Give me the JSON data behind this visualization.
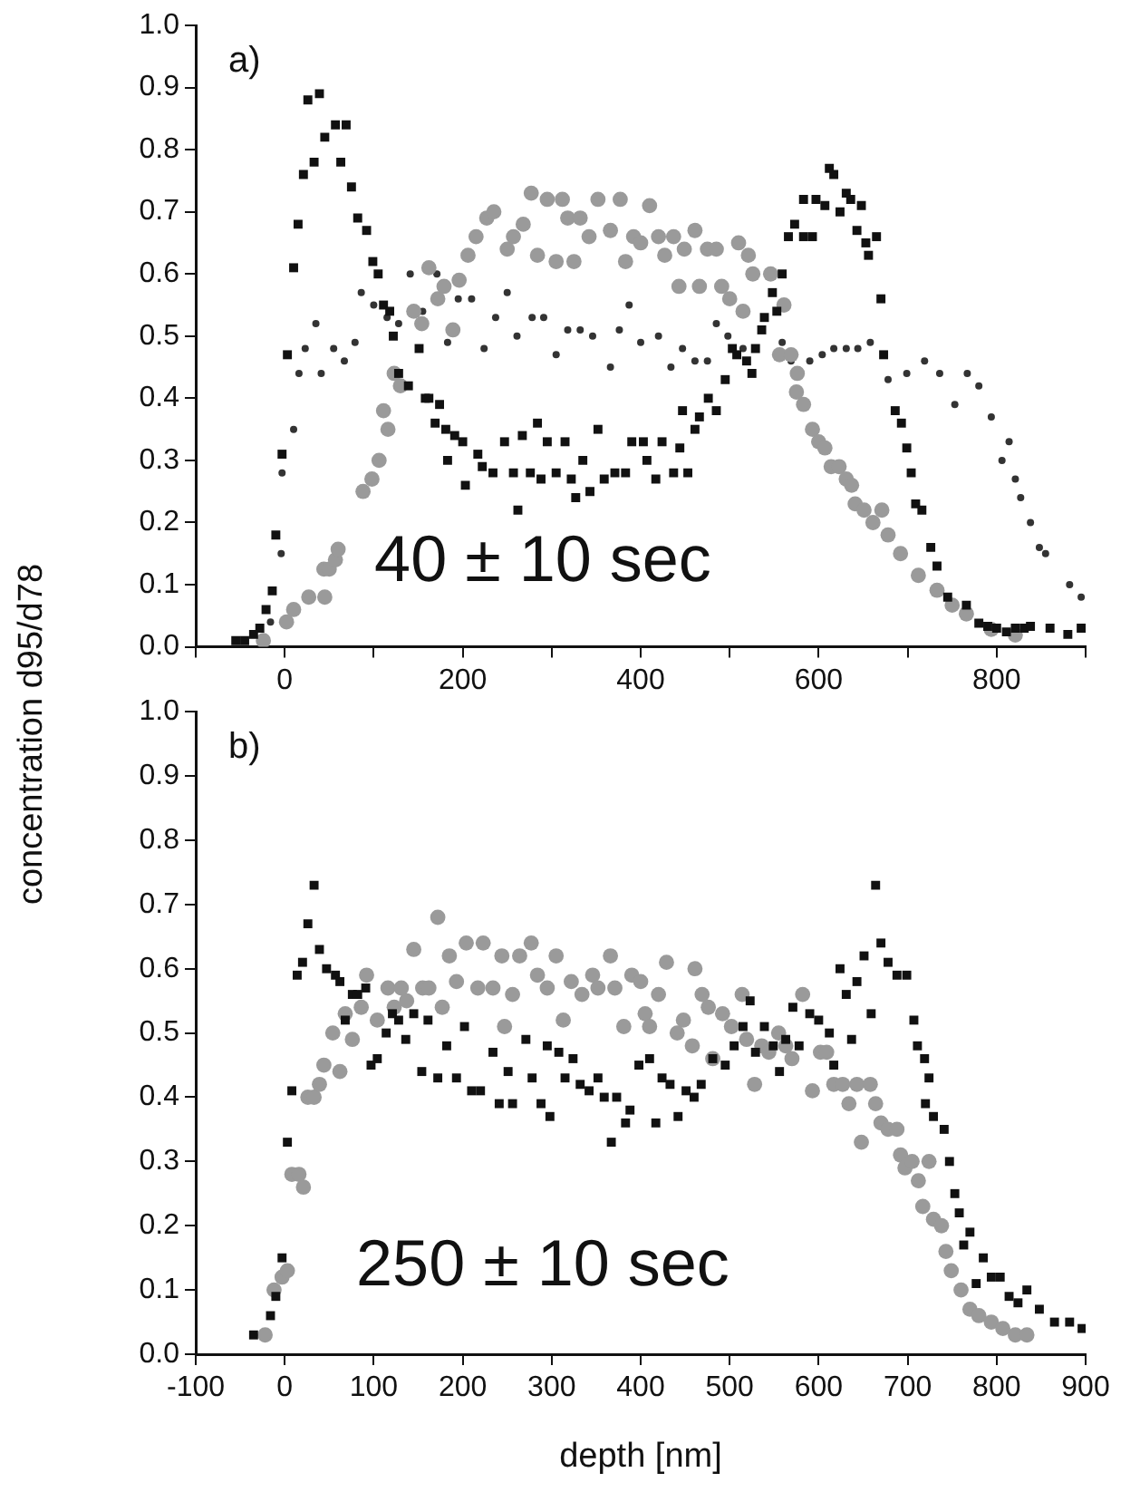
{
  "chart_data": [
    {
      "type": "scatter",
      "ylabel": "concentration d95/d78",
      "annotations": [
        "a)",
        "40 ± 10 sec"
      ],
      "xlim": [
        -100,
        900
      ],
      "ylim": [
        0,
        1
      ],
      "xticks": [
        {
          "value": -100,
          "label": null
        },
        0,
        {
          "value": 100,
          "label": null
        },
        200,
        {
          "value": 300,
          "label": null
        },
        400,
        {
          "value": 500,
          "label": null
        },
        600,
        {
          "value": 700,
          "label": null
        },
        800,
        {
          "value": 900,
          "label": null
        }
      ],
      "yticks": [
        {
          "value": 0,
          "label": "0.0"
        },
        {
          "value": 0.1,
          "label": "0.1"
        },
        {
          "value": 0.2,
          "label": "0.2"
        },
        {
          "value": 0.3,
          "label": "0.3"
        },
        {
          "value": 0.4,
          "label": "0.4"
        },
        {
          "value": 0.5,
          "label": "0.5"
        },
        {
          "value": 0.6,
          "label": "0.6"
        },
        {
          "value": 0.7,
          "label": "0.7"
        },
        {
          "value": 0.8,
          "label": "0.8"
        },
        {
          "value": 0.9,
          "label": "0.9"
        },
        {
          "value": 1,
          "label": "1.0"
        }
      ],
      "grid": false,
      "legend": false,
      "series": [
        {
          "color": "#111111",
          "marker": "square",
          "x": [
            -55,
            -45,
            -35,
            -28,
            -21,
            -14,
            -10,
            -3,
            3,
            10,
            15,
            21,
            26,
            39,
            33,
            45,
            57,
            69,
            63,
            75,
            82,
            92,
            99,
            105,
            111,
            118,
            122,
            128,
            139,
            151,
            158,
            162,
            174,
            169,
            181,
            191,
            200,
            203,
            183,
            217,
            222,
            234,
            247,
            257,
            262,
            267,
            276,
            284,
            288,
            295,
            305,
            315,
            322,
            327,
            335,
            343,
            352,
            359,
            371,
            383,
            390,
            403,
            407,
            417,
            424,
            437,
            444,
            453,
            447,
            461,
            466,
            476,
            485,
            495,
            503,
            508,
            519,
            525,
            529,
            536,
            539,
            548,
            553,
            559,
            566,
            573,
            583,
            593,
            583,
            597,
            607,
            612,
            617,
            624,
            631,
            636,
            648,
            643,
            653,
            665,
            656,
            670,
            673,
            686,
            693,
            699,
            704,
            709,
            716,
            726,
            733,
            745,
            766,
            780,
            790,
            800,
            811,
            821,
            831,
            838,
            860,
            880,
            895
          ],
          "values": [
            0.01,
            0.01,
            0.02,
            0.03,
            0.06,
            0.09,
            0.18,
            0.31,
            0.47,
            0.61,
            0.68,
            0.76,
            0.88,
            0.89,
            0.78,
            0.82,
            0.84,
            0.84,
            0.78,
            0.74,
            0.69,
            0.67,
            0.62,
            0.6,
            0.55,
            0.54,
            0.5,
            0.44,
            0.42,
            0.48,
            0.4,
            0.4,
            0.39,
            0.36,
            0.35,
            0.34,
            0.33,
            0.26,
            0.3,
            0.31,
            0.29,
            0.28,
            0.33,
            0.28,
            0.22,
            0.34,
            0.28,
            0.36,
            0.27,
            0.33,
            0.28,
            0.33,
            0.27,
            0.24,
            0.3,
            0.25,
            0.35,
            0.27,
            0.28,
            0.28,
            0.33,
            0.33,
            0.3,
            0.27,
            0.33,
            0.28,
            0.32,
            0.28,
            0.38,
            0.35,
            0.37,
            0.4,
            0.38,
            0.43,
            0.48,
            0.47,
            0.46,
            0.44,
            0.48,
            0.51,
            0.53,
            0.57,
            0.54,
            0.6,
            0.66,
            0.68,
            0.66,
            0.66,
            0.72,
            0.72,
            0.71,
            0.77,
            0.76,
            0.7,
            0.73,
            0.72,
            0.71,
            0.67,
            0.65,
            0.66,
            0.63,
            0.56,
            0.47,
            0.38,
            0.36,
            0.32,
            0.28,
            0.23,
            0.22,
            0.16,
            0.13,
            0.08,
            0.067,
            0.038,
            0.033,
            0.03,
            0.024,
            0.03,
            0.03,
            0.033,
            0.03,
            0.02,
            0.03
          ]
        },
        {
          "color": "#9a9a9a",
          "marker": "circle",
          "x": [
            -24,
            2,
            10,
            27,
            45,
            44,
            50,
            57,
            60,
            88,
            98,
            106,
            116,
            111,
            123,
            130,
            145,
            154,
            162,
            172,
            179,
            189,
            196,
            206,
            215,
            227,
            235,
            250,
            257,
            268,
            277,
            284,
            295,
            305,
            312,
            318,
            325,
            332,
            342,
            352,
            366,
            377,
            383,
            392,
            400,
            410,
            420,
            427,
            437,
            443,
            449,
            461,
            466,
            475,
            485,
            491,
            500,
            510,
            521,
            526,
            515,
            546,
            561,
            556,
            569,
            576,
            575,
            583,
            593,
            600,
            607,
            614,
            623,
            631,
            637,
            641,
            651,
            661,
            671,
            678,
            692,
            712,
            733,
            750,
            766,
            794,
            821
          ],
          "values": [
            0.01,
            0.04,
            0.06,
            0.08,
            0.08,
            0.125,
            0.125,
            0.14,
            0.157,
            0.25,
            0.27,
            0.3,
            0.35,
            0.38,
            0.44,
            0.42,
            0.54,
            0.52,
            0.61,
            0.56,
            0.58,
            0.51,
            0.59,
            0.63,
            0.66,
            0.69,
            0.7,
            0.64,
            0.66,
            0.68,
            0.73,
            0.63,
            0.72,
            0.62,
            0.72,
            0.69,
            0.62,
            0.69,
            0.66,
            0.72,
            0.67,
            0.72,
            0.62,
            0.66,
            0.65,
            0.71,
            0.66,
            0.63,
            0.66,
            0.58,
            0.64,
            0.67,
            0.58,
            0.64,
            0.64,
            0.58,
            0.56,
            0.65,
            0.63,
            0.6,
            0.54,
            0.6,
            0.55,
            0.47,
            0.47,
            0.44,
            0.41,
            0.39,
            0.35,
            0.33,
            0.32,
            0.29,
            0.29,
            0.27,
            0.26,
            0.23,
            0.22,
            0.2,
            0.22,
            0.18,
            0.15,
            0.115,
            0.091,
            0.067,
            0.053,
            0.028,
            0.019
          ]
        },
        {
          "color": "#333333",
          "marker": "circle",
          "x": [
            -16,
            -4,
            -3,
            10,
            16,
            23,
            35,
            41,
            55,
            67,
            79,
            86,
            100,
            115,
            128,
            141,
            155,
            171,
            183,
            195,
            210,
            224,
            237,
            250,
            261,
            278,
            291,
            305,
            318,
            332,
            346,
            366,
            376,
            387,
            400,
            420,
            434,
            447,
            461,
            475,
            485,
            498,
            515,
            536,
            559,
            569,
            590,
            604,
            617,
            631,
            644,
            658,
            678,
            699,
            719,
            736,
            753,
            767,
            780,
            794,
            806,
            814,
            821,
            827,
            838,
            848,
            855,
            882,
            895
          ],
          "values": [
            0.04,
            0.15,
            0.28,
            0.35,
            0.44,
            0.48,
            0.52,
            0.44,
            0.48,
            0.46,
            0.49,
            0.57,
            0.55,
            0.53,
            0.52,
            0.6,
            0.54,
            0.6,
            0.49,
            0.56,
            0.56,
            0.48,
            0.53,
            0.57,
            0.5,
            0.53,
            0.53,
            0.47,
            0.51,
            0.51,
            0.5,
            0.45,
            0.51,
            0.55,
            0.49,
            0.5,
            0.45,
            0.48,
            0.46,
            0.46,
            0.52,
            0.5,
            0.48,
            null,
            0.49,
            0.46,
            0.46,
            0.47,
            0.48,
            0.48,
            0.48,
            0.49,
            0.43,
            0.44,
            0.46,
            0.44,
            0.39,
            0.44,
            0.42,
            0.37,
            0.3,
            0.33,
            0.27,
            0.24,
            0.2,
            0.16,
            0.15,
            0.1,
            0.08
          ]
        }
      ]
    },
    {
      "type": "scatter",
      "xlabel": "depth [nm]",
      "annotations": [
        "b)",
        "250 ± 10 sec"
      ],
      "xlim": [
        -100,
        900
      ],
      "ylim": [
        0,
        1
      ],
      "xticks": [
        -100,
        0,
        100,
        200,
        300,
        400,
        500,
        600,
        700,
        800,
        900
      ],
      "yticks": [
        {
          "value": 0,
          "label": "0.0"
        },
        {
          "value": 0.1,
          "label": "0.1"
        },
        {
          "value": 0.2,
          "label": "0.2"
        },
        {
          "value": 0.3,
          "label": "0.3"
        },
        {
          "value": 0.4,
          "label": "0.4"
        },
        {
          "value": 0.5,
          "label": "0.5"
        },
        {
          "value": 0.6,
          "label": "0.6"
        },
        {
          "value": 0.7,
          "label": "0.7"
        },
        {
          "value": 0.8,
          "label": "0.8"
        },
        {
          "value": 0.9,
          "label": "0.9"
        },
        {
          "value": 1,
          "label": "1.0"
        }
      ],
      "grid": false,
      "legend": false,
      "series": [
        {
          "color": "#111111",
          "marker": "square",
          "x": [
            -35,
            -16,
            -10,
            -3,
            3,
            8,
            14,
            20,
            26,
            33,
            39,
            47,
            57,
            62,
            68,
            76,
            82,
            91,
            97,
            104,
            114,
            121,
            128,
            136,
            145,
            154,
            161,
            172,
            182,
            193,
            202,
            210,
            220,
            234,
            241,
            251,
            256,
            271,
            278,
            288,
            295,
            298,
            308,
            315,
            324,
            332,
            342,
            352,
            359,
            367,
            373,
            383,
            388,
            398,
            410,
            417,
            424,
            433,
            442,
            451,
            460,
            468,
            481,
            495,
            505,
            515,
            523,
            529,
            539,
            549,
            556,
            563,
            571,
            578,
            590,
            600,
            612,
            617,
            624,
            631,
            637,
            643,
            651,
            659,
            664,
            670,
            678,
            688,
            699,
            707,
            711,
            719,
            724,
            720,
            729,
            741,
            747,
            753,
            758,
            763,
            770,
            777,
            785,
            794,
            804,
            814,
            824,
            834,
            848,
            865,
            882,
            896
          ],
          "values": [
            0.03,
            0.06,
            0.09,
            0.15,
            0.33,
            0.41,
            0.59,
            0.61,
            0.67,
            0.73,
            0.63,
            0.6,
            0.59,
            0.58,
            0.52,
            0.56,
            0.56,
            0.57,
            0.45,
            0.46,
            0.5,
            0.53,
            0.52,
            0.49,
            0.53,
            0.44,
            0.52,
            0.43,
            0.48,
            0.43,
            0.51,
            0.41,
            0.41,
            0.47,
            0.39,
            0.44,
            0.39,
            0.49,
            0.43,
            0.39,
            0.48,
            0.37,
            0.47,
            0.43,
            0.46,
            0.42,
            0.41,
            0.43,
            0.4,
            0.33,
            0.4,
            0.36,
            0.38,
            0.45,
            0.46,
            0.36,
            0.43,
            0.42,
            0.37,
            0.41,
            0.4,
            0.42,
            0.46,
            0.45,
            0.48,
            0.51,
            0.55,
            0.47,
            0.51,
            0.48,
            0.44,
            0.49,
            0.54,
            0.48,
            0.53,
            0.52,
            0.5,
            0.45,
            0.6,
            0.56,
            0.49,
            0.58,
            0.62,
            0.53,
            0.73,
            0.64,
            0.61,
            0.59,
            0.59,
            0.52,
            0.48,
            0.46,
            0.43,
            0.39,
            0.37,
            0.35,
            0.3,
            0.25,
            0.22,
            0.17,
            0.19,
            0.11,
            0.15,
            0.12,
            0.12,
            0.09,
            0.08,
            0.1,
            0.07,
            0.05,
            0.05,
            0.04
          ]
        },
        {
          "color": "#9a9a9a",
          "marker": "circle",
          "x": [
            -22,
            -12,
            -3,
            3,
            8,
            16,
            21,
            26,
            33,
            39,
            44,
            54,
            62,
            68,
            76,
            86,
            92,
            104,
            116,
            123,
            131,
            137,
            145,
            155,
            162,
            172,
            177,
            185,
            193,
            204,
            217,
            223,
            234,
            244,
            247,
            256,
            264,
            277,
            284,
            295,
            305,
            313,
            322,
            334,
            346,
            352,
            366,
            371,
            381,
            390,
            400,
            405,
            410,
            420,
            429,
            441,
            448,
            458,
            461,
            469,
            476,
            481,
            492,
            502,
            514,
            519,
            528,
            536,
            544,
            555,
            563,
            570,
            582,
            593,
            602,
            609,
            617,
            627,
            634,
            643,
            648,
            658,
            664,
            670,
            678,
            688,
            692,
            697,
            705,
            712,
            717,
            724,
            729,
            738,
            743,
            749,
            760,
            770,
            780,
            794,
            807,
            821,
            834
          ],
          "values": [
            0.03,
            0.1,
            0.12,
            0.13,
            0.28,
            0.28,
            0.26,
            0.4,
            0.4,
            0.42,
            0.45,
            0.5,
            0.44,
            0.53,
            0.49,
            0.54,
            0.59,
            0.52,
            0.57,
            0.54,
            0.57,
            0.55,
            0.63,
            0.57,
            0.57,
            0.68,
            0.54,
            0.62,
            0.58,
            0.64,
            0.57,
            0.64,
            0.57,
            0.62,
            0.51,
            0.56,
            0.62,
            0.64,
            0.59,
            0.57,
            0.62,
            0.52,
            0.58,
            0.56,
            0.59,
            0.57,
            0.62,
            0.57,
            0.51,
            0.59,
            0.58,
            0.53,
            0.51,
            0.56,
            0.61,
            0.5,
            0.52,
            0.48,
            0.6,
            0.56,
            0.54,
            0.46,
            0.53,
            0.51,
            0.56,
            0.49,
            0.42,
            0.48,
            0.47,
            0.5,
            0.48,
            0.46,
            0.56,
            0.41,
            0.47,
            0.47,
            0.42,
            0.42,
            0.39,
            0.42,
            0.33,
            0.42,
            0.39,
            0.36,
            0.35,
            0.35,
            0.31,
            0.29,
            0.3,
            0.27,
            0.23,
            0.3,
            0.21,
            0.2,
            0.16,
            0.13,
            0.1,
            0.07,
            0.06,
            0.05,
            0.04,
            0.03,
            0.03
          ]
        }
      ]
    }
  ]
}
